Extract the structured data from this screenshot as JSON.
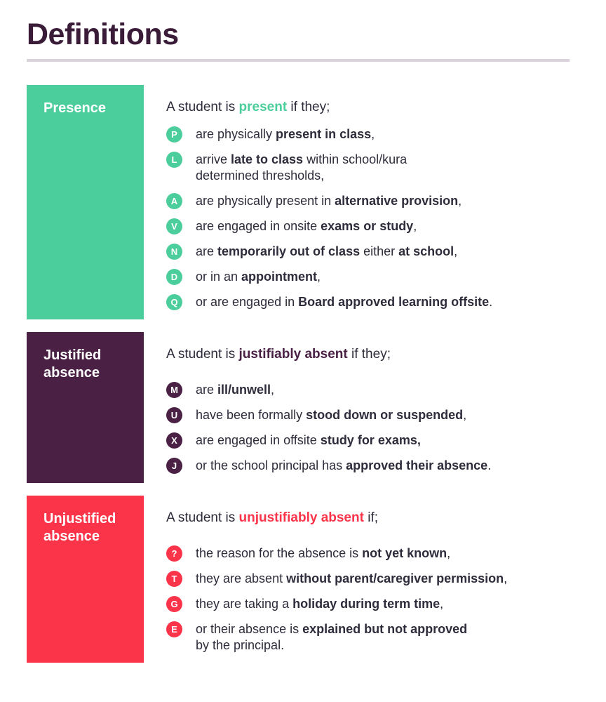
{
  "page": {
    "title": "Definitions"
  },
  "colors": {
    "title": "#3a1c38",
    "body_text": "#2e2b3a",
    "rule": "#dad2db",
    "presence_green": "#4bce9b",
    "justified_purple": "#4a2145",
    "unjustified_red": "#fb3449"
  },
  "sections": [
    {
      "id": "presence",
      "label": "Presence",
      "color": "#4bce9b",
      "intro": [
        {
          "text": "A student is "
        },
        {
          "text": "present",
          "bold": true,
          "accent": true
        },
        {
          "text": " if they;"
        }
      ],
      "items": [
        {
          "code": "P",
          "segments": [
            {
              "text": "are physically "
            },
            {
              "text": "present in class",
              "bold": true
            },
            {
              "text": ","
            }
          ]
        },
        {
          "code": "L",
          "segments": [
            {
              "text": "arrive "
            },
            {
              "text": "late to class",
              "bold": true
            },
            {
              "text": " within school/kura"
            },
            {
              "break": true
            },
            {
              "text": "determined thresholds,"
            }
          ]
        },
        {
          "code": "A",
          "segments": [
            {
              "text": "are physically present in "
            },
            {
              "text": "alternative provision",
              "bold": true
            },
            {
              "text": ","
            }
          ]
        },
        {
          "code": "V",
          "segments": [
            {
              "text": "are engaged in onsite "
            },
            {
              "text": "exams or study",
              "bold": true
            },
            {
              "text": ","
            }
          ]
        },
        {
          "code": "N",
          "segments": [
            {
              "text": "are "
            },
            {
              "text": "temporarily out of class",
              "bold": true
            },
            {
              "text": " either "
            },
            {
              "text": "at school",
              "bold": true
            },
            {
              "text": ","
            }
          ]
        },
        {
          "code": "D",
          "segments": [
            {
              "text": "or in an "
            },
            {
              "text": "appointment",
              "bold": true
            },
            {
              "text": ","
            }
          ]
        },
        {
          "code": "Q",
          "segments": [
            {
              "text": "or are engaged in "
            },
            {
              "text": "Board approved learning offsite",
              "bold": true
            },
            {
              "text": "."
            }
          ]
        }
      ]
    },
    {
      "id": "justified",
      "label": "Justified absence",
      "color": "#4a2145",
      "intro": [
        {
          "text": "A student is "
        },
        {
          "text": "justifiably absent",
          "bold": true,
          "accent": true
        },
        {
          "text": " if they;"
        }
      ],
      "items": [
        {
          "code": "M",
          "segments": [
            {
              "text": "are "
            },
            {
              "text": "ill/unwell",
              "bold": true
            },
            {
              "text": ","
            }
          ]
        },
        {
          "code": "U",
          "segments": [
            {
              "text": "have been formally "
            },
            {
              "text": "stood down or suspended",
              "bold": true
            },
            {
              "text": ","
            }
          ]
        },
        {
          "code": "X",
          "segments": [
            {
              "text": "are engaged in offsite "
            },
            {
              "text": "study for exams,",
              "bold": true
            }
          ]
        },
        {
          "code": "J",
          "segments": [
            {
              "text": "or the school principal has "
            },
            {
              "text": "approved their absence",
              "bold": true
            },
            {
              "text": "."
            }
          ]
        }
      ]
    },
    {
      "id": "unjustified",
      "label": "Unjustified absence",
      "color": "#fb3449",
      "intro": [
        {
          "text": "A student is "
        },
        {
          "text": "unjustifiably absent",
          "bold": true,
          "accent": true
        },
        {
          "text": " if;"
        }
      ],
      "items": [
        {
          "code": "?",
          "segments": [
            {
              "text": "the reason for the absence is "
            },
            {
              "text": "not yet known",
              "bold": true
            },
            {
              "text": ","
            }
          ]
        },
        {
          "code": "T",
          "segments": [
            {
              "text": "they are absent "
            },
            {
              "text": "without parent/caregiver permission",
              "bold": true
            },
            {
              "text": ","
            }
          ]
        },
        {
          "code": "G",
          "segments": [
            {
              "text": "they are taking a "
            },
            {
              "text": "holiday during term time",
              "bold": true
            },
            {
              "text": ","
            }
          ]
        },
        {
          "code": "E",
          "segments": [
            {
              "text": "or their absence is "
            },
            {
              "text": "explained but not approved",
              "bold": true
            },
            {
              "break": true
            },
            {
              "text": "by the principal."
            }
          ]
        }
      ]
    }
  ]
}
